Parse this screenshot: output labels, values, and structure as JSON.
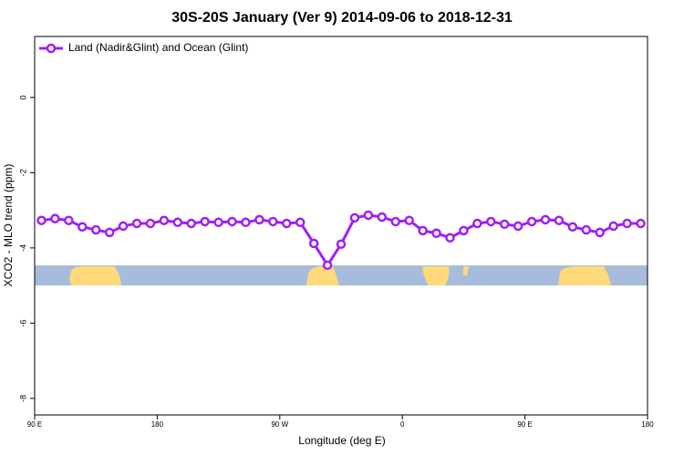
{
  "chart_data": {
    "type": "line",
    "title": "30S-20S January (Ver 9)   2014-09-06 to 2018-12-31",
    "x_label": "Longitude (deg E)",
    "y_label": "XCO2 - MLO trend (ppm)",
    "x": [
      95,
      105,
      115,
      125,
      135,
      145,
      155,
      165,
      175,
      185,
      195,
      205,
      215,
      225,
      235,
      245,
      255,
      265,
      275,
      285,
      295,
      305,
      315,
      325,
      335,
      345,
      355,
      365,
      375,
      385,
      395,
      405,
      415,
      425,
      435,
      445,
      455,
      465,
      475,
      485,
      495,
      505,
      515,
      525,
      535
    ],
    "series": [
      {
        "name": "Land (Nadir&Glint) and Ocean (Glint)",
        "color": "#a020f0",
        "values": [
          -3.27,
          -3.22,
          -3.27,
          -3.44,
          -3.52,
          -3.59,
          -3.42,
          -3.35,
          -3.35,
          -3.27,
          -3.32,
          -3.35,
          -3.3,
          -3.32,
          -3.3,
          -3.32,
          -3.25,
          -3.3,
          -3.35,
          -3.32,
          -3.88,
          -4.46,
          -3.9,
          -3.2,
          -3.13,
          -3.18,
          -3.3,
          -3.27,
          -3.54,
          -3.61,
          -3.73,
          -3.54,
          -3.35,
          -3.3,
          -3.37,
          -3.42,
          -3.3,
          -3.25,
          -3.27,
          -3.44,
          -3.52,
          -3.59,
          -3.42,
          -3.35,
          -3.35
        ]
      }
    ],
    "xlim": [
      90,
      540
    ],
    "xticks": [
      {
        "value": 90,
        "label": "90 E"
      },
      {
        "value": 180,
        "label": "180"
      },
      {
        "value": 270,
        "label": "90 W"
      },
      {
        "value": 360,
        "label": "0"
      },
      {
        "value": 450,
        "label": "90 E"
      },
      {
        "value": 540,
        "label": "180"
      }
    ],
    "ylim": [
      -8.44,
      1.62
    ],
    "yticks": [
      0,
      -2,
      -4,
      -6,
      -8
    ],
    "legend": "top-left"
  }
}
